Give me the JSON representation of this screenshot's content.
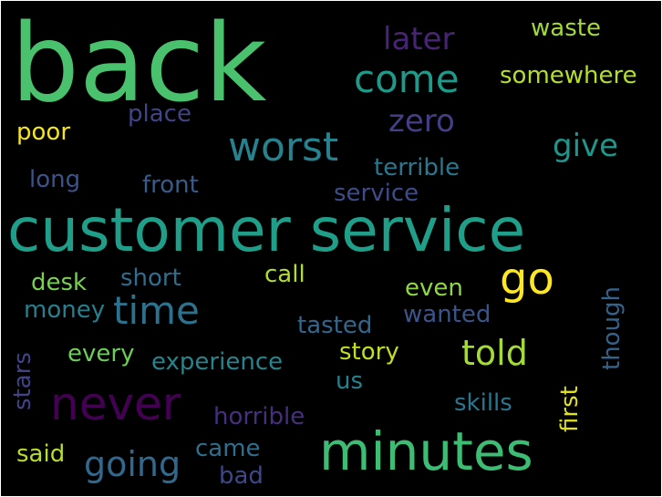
{
  "words": [
    {
      "text": "back",
      "color": "#4ac16d"
    },
    {
      "text": "customer service",
      "color": "#1f9e89"
    },
    {
      "text": "minutes",
      "color": "#3dbc74"
    },
    {
      "text": "never",
      "color": "#440154"
    },
    {
      "text": "worst",
      "color": "#26828e"
    },
    {
      "text": "come",
      "color": "#1f9a8a"
    },
    {
      "text": "time",
      "color": "#2c728e"
    },
    {
      "text": "go",
      "color": "#fde725"
    },
    {
      "text": "told",
      "color": "#a5db36"
    },
    {
      "text": "going",
      "color": "#31688e"
    },
    {
      "text": "later",
      "color": "#482475"
    },
    {
      "text": "zero",
      "color": "#433e85"
    },
    {
      "text": "give",
      "color": "#1f968b"
    },
    {
      "text": "waste",
      "color": "#a0da39"
    },
    {
      "text": "somewhere",
      "color": "#b5de2b"
    },
    {
      "text": "place",
      "color": "#414487"
    },
    {
      "text": "poor",
      "color": "#f4e61e"
    },
    {
      "text": "terrible",
      "color": "#2a788e"
    },
    {
      "text": "long",
      "color": "#3b528b"
    },
    {
      "text": "front",
      "color": "#365c8d"
    },
    {
      "text": "service",
      "color": "#3e4c8a"
    },
    {
      "text": "desk",
      "color": "#7ad151"
    },
    {
      "text": "short",
      "color": "#2e6e8e"
    },
    {
      "text": "call",
      "color": "#b0dd2f"
    },
    {
      "text": "even",
      "color": "#8fd744"
    },
    {
      "text": "money",
      "color": "#277f8e"
    },
    {
      "text": "wanted",
      "color": "#3a548c"
    },
    {
      "text": "tasted",
      "color": "#31678e"
    },
    {
      "text": "every",
      "color": "#6ccd5a"
    },
    {
      "text": "experience",
      "color": "#25858e"
    },
    {
      "text": "story",
      "color": "#c2df23"
    },
    {
      "text": "us",
      "color": "#26818e"
    },
    {
      "text": "skills",
      "color": "#2a768e"
    },
    {
      "text": "horrible",
      "color": "#46307e"
    },
    {
      "text": "said",
      "color": "#b8de29"
    },
    {
      "text": "came",
      "color": "#2d708e"
    },
    {
      "text": "bad",
      "color": "#3f4788"
    },
    {
      "text": "stars",
      "color": "#414287"
    },
    {
      "text": "first",
      "color": "#dfe318"
    },
    {
      "text": "though",
      "color": "#33638d"
    }
  ]
}
